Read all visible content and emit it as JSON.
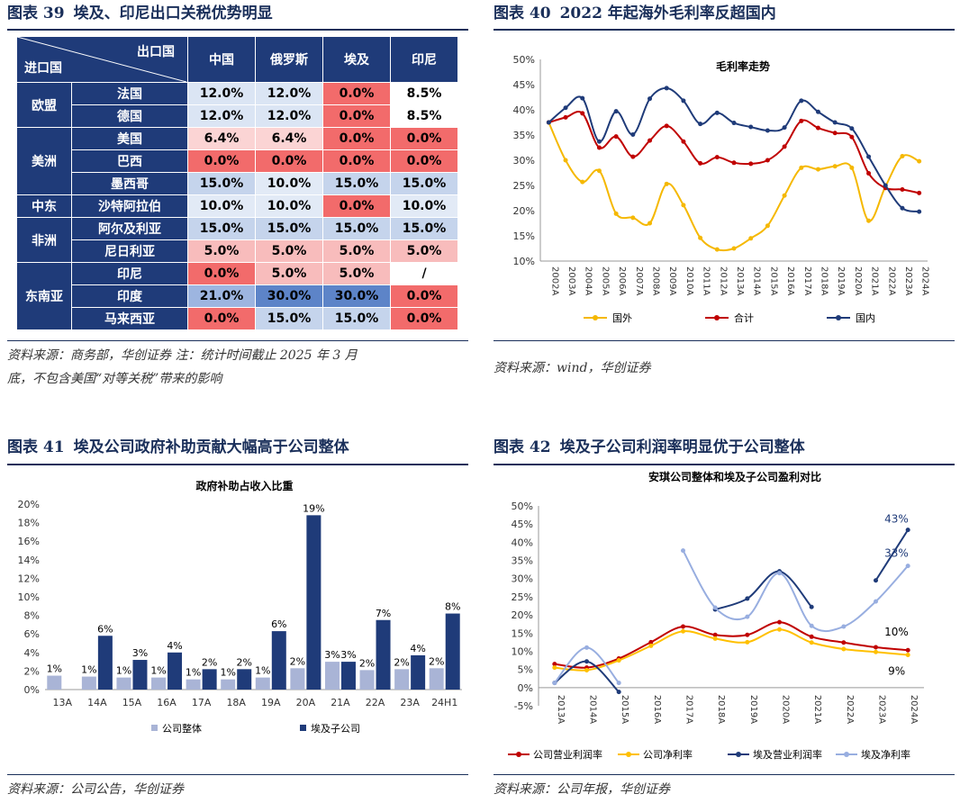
{
  "panel39": {
    "label": "图表 39",
    "title": "埃及、印尼出口关税优势明显",
    "header": {
      "export_label": "出口国",
      "import_label": "进口国",
      "columns": [
        "中国",
        "俄罗斯",
        "埃及",
        "印尼"
      ]
    },
    "regions": [
      {
        "name": "欧盟",
        "rows": [
          {
            "country": "法国",
            "values": [
              "12.0%",
              "12.0%",
              "0.0%",
              "8.5%"
            ],
            "colors": [
              "#dbe5f4",
              "#dbe5f4",
              "#f26b6b",
              "#ffffff"
            ]
          },
          {
            "country": "德国",
            "values": [
              "12.0%",
              "12.0%",
              "0.0%",
              "8.5%"
            ],
            "colors": [
              "#dbe5f4",
              "#dbe5f4",
              "#f26b6b",
              "#ffffff"
            ]
          }
        ]
      },
      {
        "name": "美洲",
        "rows": [
          {
            "country": "美国",
            "values": [
              "6.4%",
              "6.4%",
              "0.0%",
              "0.0%"
            ],
            "colors": [
              "#fbd4d4",
              "#fbd4d4",
              "#f26b6b",
              "#f26b6b"
            ]
          },
          {
            "country": "巴西",
            "values": [
              "0.0%",
              "0.0%",
              "0.0%",
              "0.0%"
            ],
            "colors": [
              "#f26b6b",
              "#f26b6b",
              "#f26b6b",
              "#f26b6b"
            ]
          },
          {
            "country": "墨西哥",
            "values": [
              "15.0%",
              "10.0%",
              "15.0%",
              "15.0%"
            ],
            "colors": [
              "#c5d4ec",
              "#e2eaf6",
              "#c5d4ec",
              "#c5d4ec"
            ]
          }
        ]
      },
      {
        "name": "中东",
        "rows": [
          {
            "country": "沙特阿拉伯",
            "values": [
              "10.0%",
              "10.0%",
              "0.0%",
              "10.0%"
            ],
            "colors": [
              "#e2eaf6",
              "#e2eaf6",
              "#f26b6b",
              "#e2eaf6"
            ]
          }
        ]
      },
      {
        "name": "非洲",
        "rows": [
          {
            "country": "阿尔及利亚",
            "values": [
              "15.0%",
              "15.0%",
              "15.0%",
              "15.0%"
            ],
            "colors": [
              "#c5d4ec",
              "#c5d4ec",
              "#c5d4ec",
              "#c5d4ec"
            ]
          },
          {
            "country": "尼日利亚",
            "values": [
              "5.0%",
              "5.0%",
              "5.0%",
              "5.0%"
            ],
            "colors": [
              "#f8bcbc",
              "#f8bcbc",
              "#f8bcbc",
              "#f8bcbc"
            ]
          }
        ]
      },
      {
        "name": "东南亚",
        "rows": [
          {
            "country": "印尼",
            "values": [
              "0.0%",
              "5.0%",
              "5.0%",
              "/"
            ],
            "colors": [
              "#f26b6b",
              "#f8bcbc",
              "#f8bcbc",
              "#ffffff"
            ]
          },
          {
            "country": "印度",
            "values": [
              "21.0%",
              "30.0%",
              "30.0%",
              "0.0%"
            ],
            "colors": [
              "#9db5e0",
              "#5d84c8",
              "#5d84c8",
              "#f26b6b"
            ]
          },
          {
            "country": "马来西亚",
            "values": [
              "0.0%",
              "15.0%",
              "15.0%",
              "0.0%"
            ],
            "colors": [
              "#f26b6b",
              "#c5d4ec",
              "#c5d4ec",
              "#f26b6b"
            ]
          }
        ]
      }
    ],
    "source_line1": "资料来源：商务部，华创证券 注：统计时间截止 2025 年 3 月",
    "source_line2": "底，不包含美国“对等关税”带来的影响"
  },
  "panel40": {
    "label": "图表 40",
    "title": "2022 年起海外毛利率反超国内",
    "source": "资料来源：wind，华创证券"
  },
  "panel41": {
    "label": "图表 41",
    "title": "埃及公司政府补助贡献大幅高于公司整体",
    "source": "资料来源：公司公告，华创证券"
  },
  "panel42": {
    "label": "图表 42",
    "title": "埃及子公司利润率明显优于公司整体",
    "source": "资料来源：公司年报，华创证券"
  },
  "chart_data": [
    {
      "type": "line",
      "title": "毛利率走势",
      "x": [
        "2002A",
        "2003A",
        "2004A",
        "2005A",
        "2006A",
        "2007A",
        "2008A",
        "2009A",
        "2010A",
        "2011A",
        "2012A",
        "2013A",
        "2014A",
        "2015A",
        "2016A",
        "2017A",
        "2018A",
        "2019A",
        "2020A",
        "2021A",
        "2022A",
        "2023A",
        "2024A"
      ],
      "ylim": [
        0.1,
        0.5
      ],
      "yticks": [
        "10%",
        "15%",
        "20%",
        "25%",
        "30%",
        "35%",
        "40%",
        "45%",
        "50%"
      ],
      "series": [
        {
          "name": "国外",
          "color": "#f5b800",
          "values": [
            0.375,
            0.3,
            0.257,
            0.279,
            0.194,
            0.186,
            0.175,
            0.253,
            0.211,
            0.146,
            0.123,
            0.125,
            0.145,
            0.17,
            0.23,
            0.285,
            0.282,
            0.288,
            0.285,
            0.18,
            0.248,
            0.308,
            0.298
          ]
        },
        {
          "name": "合计",
          "color": "#c00000",
          "values": [
            0.375,
            0.385,
            0.393,
            0.325,
            0.347,
            0.307,
            0.339,
            0.368,
            0.337,
            0.294,
            0.306,
            0.295,
            0.293,
            0.3,
            0.327,
            0.378,
            0.364,
            0.354,
            0.346,
            0.274,
            0.245,
            0.242,
            0.235
          ]
        },
        {
          "name": "国内",
          "color": "#1f3b79",
          "values": [
            0.375,
            0.404,
            0.423,
            0.337,
            0.397,
            0.351,
            0.422,
            0.443,
            0.418,
            0.372,
            0.394,
            0.374,
            0.366,
            0.359,
            0.365,
            0.418,
            0.396,
            0.375,
            0.363,
            0.307,
            0.25,
            0.205,
            0.198
          ]
        }
      ]
    },
    {
      "type": "bar",
      "title": "政府补助占收入比重",
      "categories": [
        "13A",
        "14A",
        "15A",
        "16A",
        "17A",
        "18A",
        "19A",
        "20A",
        "21A",
        "22A",
        "23A",
        "24H1"
      ],
      "ylim": [
        0,
        0.2
      ],
      "yticks": [
        "0%",
        "2%",
        "4%",
        "6%",
        "8%",
        "10%",
        "12%",
        "14%",
        "16%",
        "18%",
        "20%"
      ],
      "series": [
        {
          "name": "公司整体",
          "color": "#a9b4d6",
          "values": [
            0.015,
            0.014,
            0.013,
            0.013,
            0.011,
            0.011,
            0.013,
            0.023,
            0.03,
            0.021,
            0.022,
            0.023
          ],
          "labels": [
            "1%",
            "1%",
            "1%",
            "1%",
            "1%",
            "1%",
            "1%",
            "2%",
            "3%",
            "2%",
            "2%",
            "2%"
          ]
        },
        {
          "name": "埃及子公司",
          "color": "#1f3b79",
          "values": [
            null,
            0.058,
            0.032,
            0.04,
            0.022,
            0.022,
            0.063,
            0.188,
            0.03,
            0.075,
            0.037,
            0.082
          ],
          "labels": [
            "",
            "6%",
            "3%",
            "4%",
            "2%",
            "2%",
            "6%",
            "19%",
            "3%",
            "7%",
            "4%",
            "8%"
          ]
        }
      ]
    },
    {
      "type": "line",
      "title": "安琪公司整体和埃及子公司盈利对比",
      "x": [
        "2013A",
        "2014A",
        "2015A",
        "2016A",
        "2017A",
        "2018A",
        "2019A",
        "2020A",
        "2021A",
        "2022A",
        "2023A",
        "2024A"
      ],
      "ylim": [
        -0.05,
        0.5
      ],
      "yticks": [
        "-5%",
        "0%",
        "5%",
        "10%",
        "15%",
        "20%",
        "25%",
        "30%",
        "35%",
        "40%",
        "45%",
        "50%"
      ],
      "series": [
        {
          "name": "公司营业利润率",
          "color": "#c00000",
          "values": [
            0.065,
            0.055,
            0.08,
            0.125,
            0.168,
            0.145,
            0.145,
            0.18,
            0.14,
            0.124,
            0.111,
            0.103
          ]
        },
        {
          "name": "公司净利率",
          "color": "#ffc000",
          "values": [
            0.055,
            0.048,
            0.075,
            0.115,
            0.155,
            0.135,
            0.125,
            0.16,
            0.124,
            0.106,
            0.098,
            0.09
          ]
        },
        {
          "name": "埃及营业利润率",
          "color": "#1f3b79",
          "values": [
            0.013,
            0.072,
            -0.012,
            null,
            null,
            0.215,
            0.245,
            0.32,
            0.222,
            null,
            0.295,
            0.434
          ]
        },
        {
          "name": "埃及净利率",
          "color": "#98aee0",
          "values": [
            0.013,
            0.11,
            0.013,
            null,
            0.377,
            0.22,
            0.195,
            0.315,
            0.17,
            0.168,
            0.237,
            0.335
          ]
        }
      ],
      "annotations": [
        "43%",
        "33%",
        "10%",
        "9%"
      ]
    }
  ]
}
